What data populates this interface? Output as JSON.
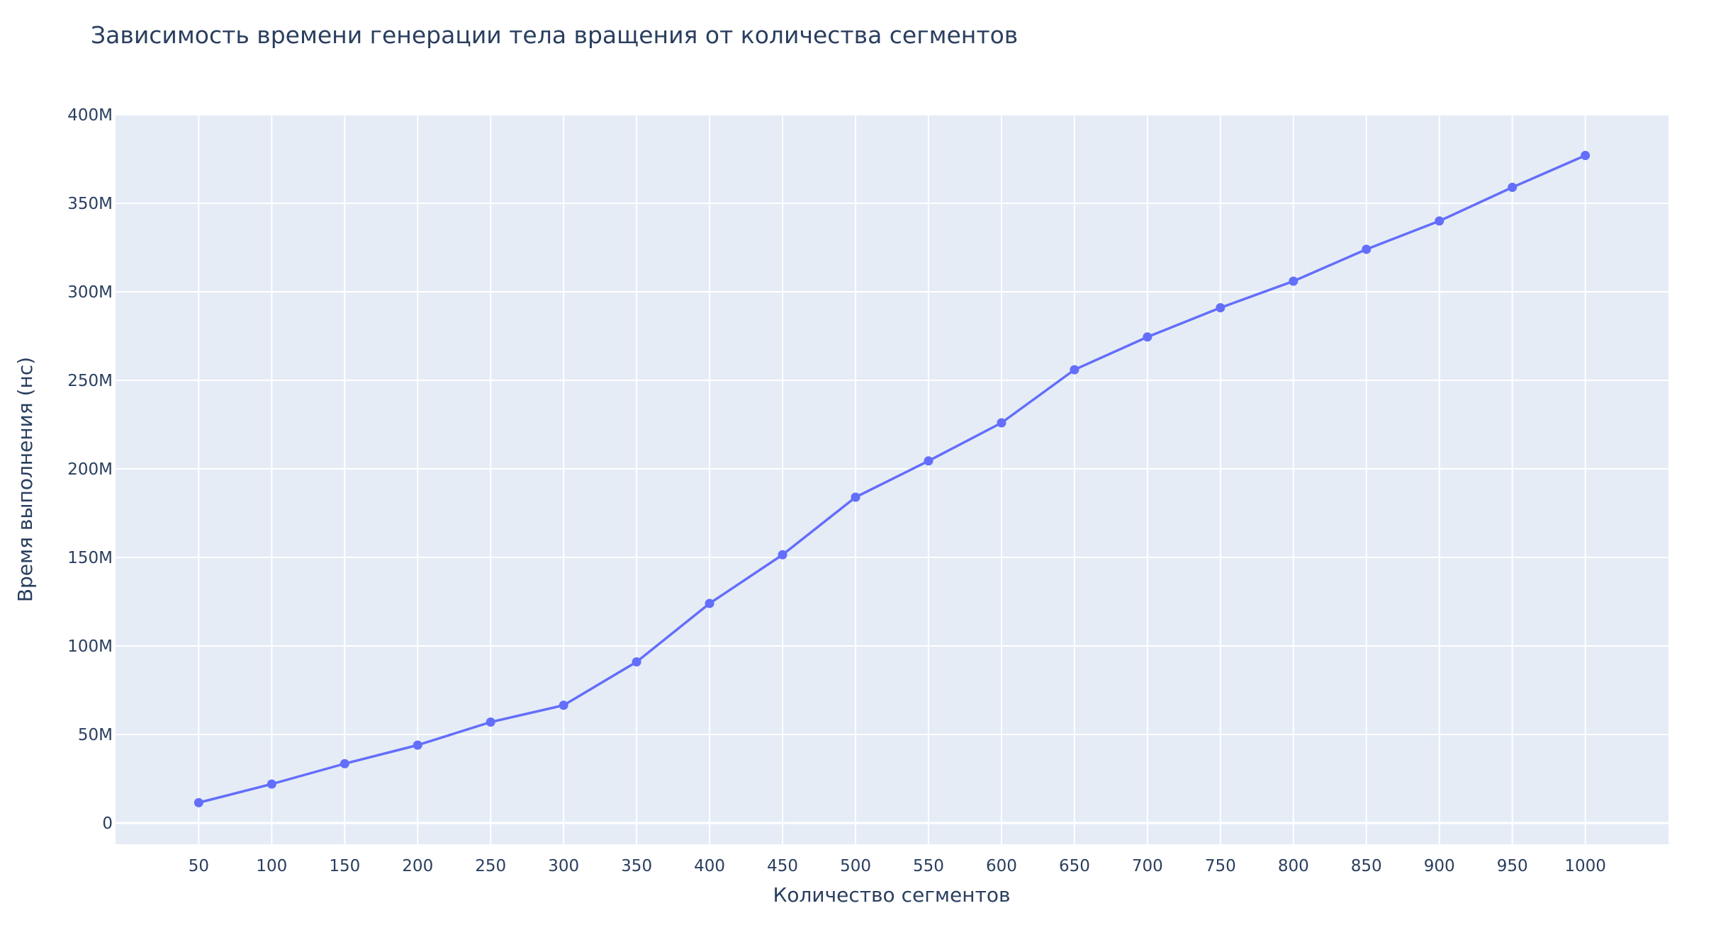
{
  "chart_data": {
    "type": "line",
    "title": "Зависимость времени генерации тела вращения от количества сегментов",
    "xlabel": "Количество сегментов",
    "ylabel": "Время выполнения (нс)",
    "x": [
      50,
      100,
      150,
      200,
      250,
      300,
      350,
      400,
      450,
      500,
      550,
      600,
      650,
      700,
      750,
      800,
      850,
      900,
      950,
      1000
    ],
    "x_tick_labels": [
      "50",
      "100",
      "150",
      "200",
      "250",
      "300",
      "350",
      "400",
      "450",
      "500",
      "550",
      "600",
      "650",
      "700",
      "750",
      "800",
      "850",
      "900",
      "950",
      "1000"
    ],
    "y_ticks": [
      0,
      50000000,
      100000000,
      150000000,
      200000000,
      250000000,
      300000000,
      350000000,
      400000000
    ],
    "y_tick_labels": [
      "0",
      "50M",
      "100M",
      "150M",
      "200M",
      "250M",
      "300M",
      "350M",
      "400M"
    ],
    "xlim": [
      -7,
      1057
    ],
    "ylim": [
      -12000000,
      400000000
    ],
    "grid": true,
    "series": [
      {
        "color": "#636efa",
        "mode": "lines+markers",
        "values": [
          11500000,
          22000000,
          33500000,
          44000000,
          57000000,
          66500000,
          91000000,
          124000000,
          151500000,
          184000000,
          204500000,
          226000000,
          256000000,
          274500000,
          291000000,
          306000000,
          324000000,
          340000000,
          359000000,
          377000000
        ]
      }
    ],
    "colors": {
      "plot_background": "#e5ecf6",
      "grid": "#ffffff",
      "text": "#2a3f5f"
    }
  }
}
